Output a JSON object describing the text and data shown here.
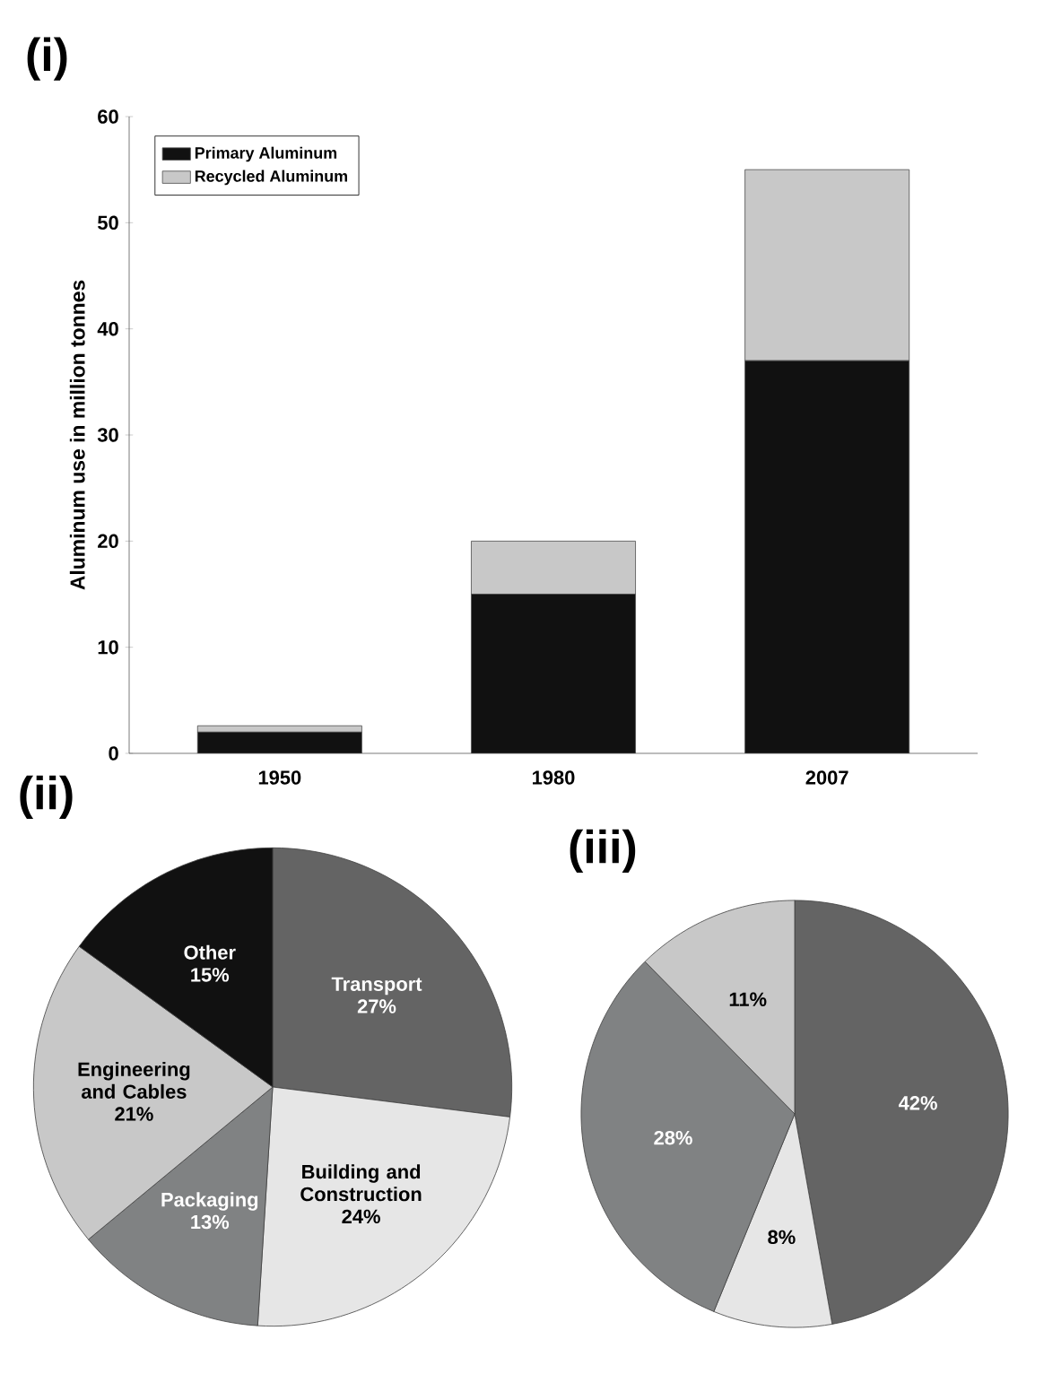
{
  "chart_data": [
    {
      "type": "bar",
      "title": "(i)",
      "ylabel": "Aluminum use in million tonnes",
      "categories": [
        "1950",
        "1980",
        "2007"
      ],
      "stacked": true,
      "legend": "top left",
      "series": [
        {
          "name": "Primary Aluminum",
          "color": "#111111",
          "values": [
            2,
            15,
            37
          ]
        },
        {
          "name": "Recycled Aluminum",
          "color": "#c8c8c8",
          "values": [
            0.6,
            5,
            18
          ]
        }
      ],
      "ylim": [
        0,
        60
      ],
      "yticks": [
        0,
        10,
        20,
        30,
        40,
        50,
        60
      ]
    },
    {
      "type": "pie",
      "title": "(ii)",
      "categories": [
        "Transport",
        "Building and Construction",
        "Packaging",
        "Engineering and Cables",
        "Other"
      ],
      "values": [
        27,
        24,
        13,
        21,
        15
      ],
      "value_labels": [
        "27%",
        "24%",
        "13%",
        "21%",
        "15%"
      ],
      "colors": [
        "#646464",
        "#e6e6e6",
        "#808283",
        "#c8c8c8",
        "#111111"
      ]
    },
    {
      "type": "pie",
      "title": "(iii)",
      "categories": [
        null,
        null,
        null,
        null
      ],
      "values": [
        42,
        8,
        28,
        11
      ],
      "value_labels": [
        "42%",
        "8%",
        "28%",
        "11%"
      ],
      "colors": [
        "#646464",
        "#e6e6e6",
        "#808283",
        "#c8c8c8"
      ]
    }
  ]
}
